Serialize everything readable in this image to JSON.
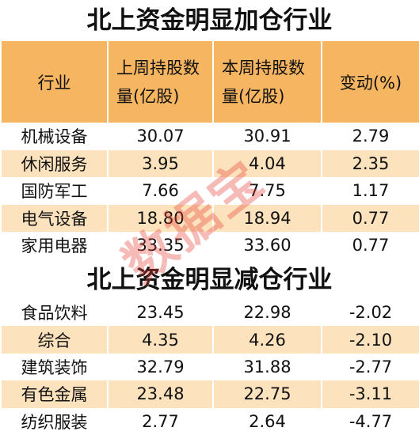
{
  "tables": [
    {
      "title": "北上资金明显加仓行业",
      "header": [
        "行业",
        "上周持股数量(亿股)",
        "本周持股数量(亿股)",
        "变动(%)"
      ],
      "rows": [
        [
          "机械设备",
          "30.07",
          "30.91",
          "2.79"
        ],
        [
          "休闲服务",
          "3.95",
          "4.04",
          "2.35"
        ],
        [
          "国防军工",
          "7.66",
          "7.75",
          "1.17"
        ],
        [
          "电气设备",
          "18.80",
          "18.94",
          "0.77"
        ],
        [
          "家用电器",
          "33.35",
          "33.60",
          "0.77"
        ]
      ]
    },
    {
      "title": "北上资金明显减仓行业",
      "rows": [
        [
          "食品饮料",
          "23.45",
          "22.98",
          "-2.02"
        ],
        [
          "综合",
          "4.35",
          "4.26",
          "-2.10"
        ],
        [
          "建筑装饰",
          "32.79",
          "31.88",
          "-2.77"
        ],
        [
          "有色金属",
          "23.48",
          "22.75",
          "-3.11"
        ],
        [
          "纺织服装",
          "2.77",
          "2.64",
          "-4.77"
        ]
      ]
    }
  ],
  "watermark": "数据宝"
}
